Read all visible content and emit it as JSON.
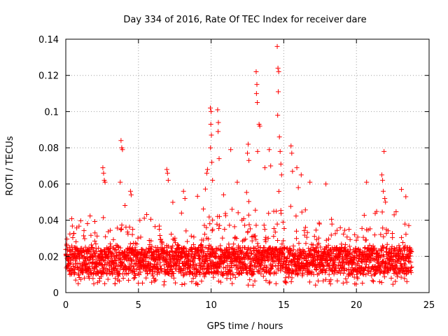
{
  "chart_data": {
    "type": "scatter",
    "title": "Day 334 of 2016, Rate Of TEC Index for receiver dare",
    "xlabel": "GPS time / hours",
    "ylabel": "ROTI / TECUs",
    "xlim": [
      0,
      25
    ],
    "ylim": [
      0,
      0.14
    ],
    "xticks": [
      0,
      5,
      10,
      15,
      20,
      25
    ],
    "xtick_labels": [
      "0",
      "5",
      "10",
      "15",
      "20",
      "25"
    ],
    "yticks": [
      0,
      0.02,
      0.04,
      0.06,
      0.08,
      0.1,
      0.12,
      0.14
    ],
    "ytick_labels": [
      "0",
      "0.02",
      "0.04",
      "0.06",
      "0.08",
      "0.1",
      "0.12",
      "0.14"
    ],
    "grid": true,
    "marker": "+",
    "color": "#ff0000",
    "data_extent_x": [
      0,
      23.8
    ],
    "baseline_band": [
      0.01,
      0.025
    ],
    "points": [
      [
        2.55,
        0.069
      ],
      [
        2.6,
        0.066
      ],
      [
        2.65,
        0.062
      ],
      [
        2.7,
        0.061
      ],
      [
        3.8,
        0.084
      ],
      [
        3.85,
        0.08
      ],
      [
        3.9,
        0.079
      ],
      [
        3.75,
        0.061
      ],
      [
        4.45,
        0.056
      ],
      [
        4.5,
        0.054
      ],
      [
        6.95,
        0.068
      ],
      [
        7.0,
        0.066
      ],
      [
        7.05,
        0.062
      ],
      [
        8.1,
        0.056
      ],
      [
        8.2,
        0.052
      ],
      [
        9.7,
        0.066
      ],
      [
        9.75,
        0.068
      ],
      [
        9.95,
        0.102
      ],
      [
        10.0,
        0.1
      ],
      [
        9.98,
        0.093
      ],
      [
        10.02,
        0.087
      ],
      [
        9.96,
        0.08
      ],
      [
        10.05,
        0.072
      ],
      [
        10.1,
        0.062
      ],
      [
        10.45,
        0.101
      ],
      [
        10.5,
        0.094
      ],
      [
        10.48,
        0.089
      ],
      [
        10.55,
        0.074
      ],
      [
        11.35,
        0.079
      ],
      [
        11.8,
        0.061
      ],
      [
        12.55,
        0.082
      ],
      [
        12.5,
        0.077
      ],
      [
        12.6,
        0.073
      ],
      [
        13.1,
        0.122
      ],
      [
        13.15,
        0.115
      ],
      [
        13.12,
        0.11
      ],
      [
        13.18,
        0.105
      ],
      [
        13.3,
        0.093
      ],
      [
        13.35,
        0.092
      ],
      [
        13.2,
        0.078
      ],
      [
        13.7,
        0.069
      ],
      [
        14.0,
        0.079
      ],
      [
        14.1,
        0.07
      ],
      [
        14.55,
        0.136
      ],
      [
        14.6,
        0.124
      ],
      [
        14.65,
        0.122
      ],
      [
        14.62,
        0.111
      ],
      [
        14.58,
        0.098
      ],
      [
        14.7,
        0.086
      ],
      [
        14.75,
        0.078
      ],
      [
        14.8,
        0.071
      ],
      [
        14.85,
        0.065
      ],
      [
        15.5,
        0.081
      ],
      [
        15.55,
        0.077
      ],
      [
        15.6,
        0.067
      ],
      [
        15.9,
        0.069
      ],
      [
        16.2,
        0.065
      ],
      [
        16.0,
        0.058
      ],
      [
        16.8,
        0.061
      ],
      [
        17.9,
        0.06
      ],
      [
        20.7,
        0.061
      ],
      [
        21.75,
        0.065
      ],
      [
        21.8,
        0.062
      ],
      [
        21.9,
        0.078
      ],
      [
        21.85,
        0.056
      ],
      [
        21.95,
        0.052
      ],
      [
        22.0,
        0.05
      ],
      [
        23.1,
        0.057
      ],
      [
        23.4,
        0.053
      ]
    ]
  }
}
